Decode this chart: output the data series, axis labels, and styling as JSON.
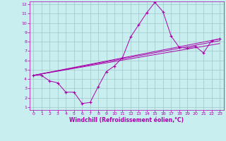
{
  "xlabel": "Windchill (Refroidissement éolien,°C)",
  "ylabel": "",
  "bg_color": "#c8eef0",
  "grid_color": "#a0c8c8",
  "line_color": "#aa00aa",
  "xlim": [
    -0.5,
    23.5
  ],
  "ylim": [
    0.7,
    12.3
  ],
  "xticks": [
    0,
    1,
    2,
    3,
    4,
    5,
    6,
    7,
    8,
    9,
    10,
    11,
    12,
    13,
    14,
    15,
    16,
    17,
    18,
    19,
    20,
    21,
    22,
    23
  ],
  "yticks": [
    1,
    2,
    3,
    4,
    5,
    6,
    7,
    8,
    9,
    10,
    11,
    12
  ],
  "series": {
    "main": {
      "x": [
        0,
        1,
        2,
        3,
        4,
        5,
        6,
        7,
        8,
        9,
        10,
        11,
        12,
        13,
        14,
        15,
        16,
        17,
        18,
        19,
        20,
        21,
        22,
        23
      ],
      "y": [
        4.4,
        4.4,
        3.8,
        3.6,
        2.6,
        2.6,
        1.4,
        1.5,
        3.2,
        4.8,
        5.4,
        6.3,
        8.5,
        9.8,
        11.1,
        12.2,
        11.2,
        8.6,
        7.4,
        7.3,
        7.5,
        6.8,
        8.1,
        8.3
      ]
    },
    "linear1": {
      "x": [
        0,
        23
      ],
      "y": [
        4.4,
        8.3
      ]
    },
    "linear2": {
      "x": [
        0,
        23
      ],
      "y": [
        4.4,
        7.8
      ]
    },
    "linear3": {
      "x": [
        0,
        23
      ],
      "y": [
        4.4,
        8.1
      ]
    }
  },
  "tick_fontsize": 4.5,
  "xlabel_fontsize": 5.5
}
